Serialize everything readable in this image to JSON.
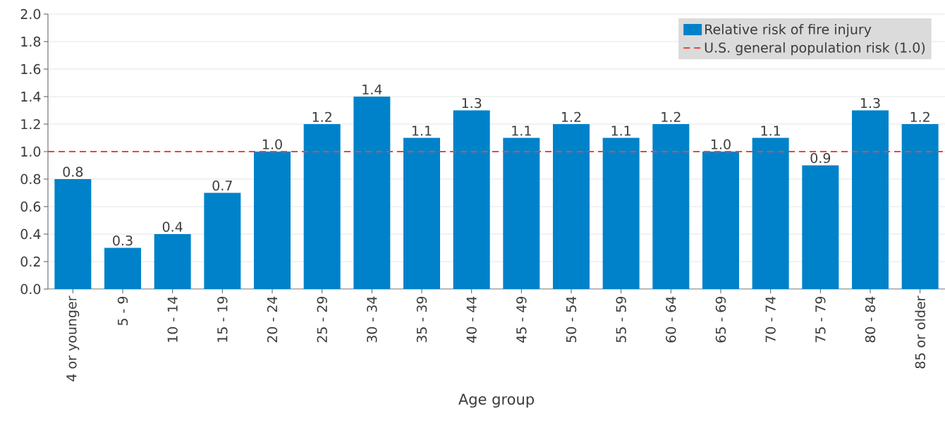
{
  "chart_data": {
    "type": "bar",
    "xlabel": "Age group",
    "categories": [
      "4 or younger",
      "5 - 9",
      "10 - 14",
      "15 - 19",
      "20 - 24",
      "25 - 29",
      "30 - 34",
      "35 - 39",
      "40 - 44",
      "45 - 49",
      "50 - 54",
      "55 - 59",
      "60 - 64",
      "65 - 69",
      "70 - 74",
      "75 - 79",
      "80 - 84",
      "85 or older"
    ],
    "series": [
      {
        "name": "Relative risk of fire injury",
        "color": "#0082ca",
        "values": [
          0.8,
          0.3,
          0.4,
          0.7,
          1.0,
          1.2,
          1.4,
          1.1,
          1.3,
          1.1,
          1.2,
          1.1,
          1.2,
          1.0,
          1.1,
          0.9,
          1.3,
          1.2
        ],
        "value_labels": [
          "0.8",
          "0.3",
          "0.4",
          "0.7",
          "1.0",
          "1.2",
          "1.4",
          "1.1",
          "1.3",
          "1.1",
          "1.2",
          "1.1",
          "1.2",
          "1.0",
          "1.1",
          "0.9",
          "1.3",
          "1.2"
        ]
      }
    ],
    "ylim": [
      0,
      2.0
    ],
    "yticks": [
      {
        "value": 0,
        "label": "0.0"
      },
      {
        "value": 0.2,
        "label": "0.2"
      },
      {
        "value": 0.4,
        "label": "0.4"
      },
      {
        "value": 0.6,
        "label": "0.6"
      },
      {
        "value": 0.8,
        "label": "0.8"
      },
      {
        "value": 1.0,
        "label": "1.0"
      },
      {
        "value": 1.2,
        "label": "1.2"
      },
      {
        "value": 1.4,
        "label": "1.4"
      },
      {
        "value": 1.6,
        "label": "1.6"
      },
      {
        "value": 1.8,
        "label": "1.8"
      },
      {
        "value": 2.0,
        "label": "2.0"
      }
    ],
    "ref_lines": [
      {
        "axis": "y",
        "value": 1.0,
        "label": "U.S. general population risk (1.0)",
        "color": "#e8473c",
        "line_style": "dashed"
      }
    ],
    "grid": "y",
    "legend": "top right"
  }
}
